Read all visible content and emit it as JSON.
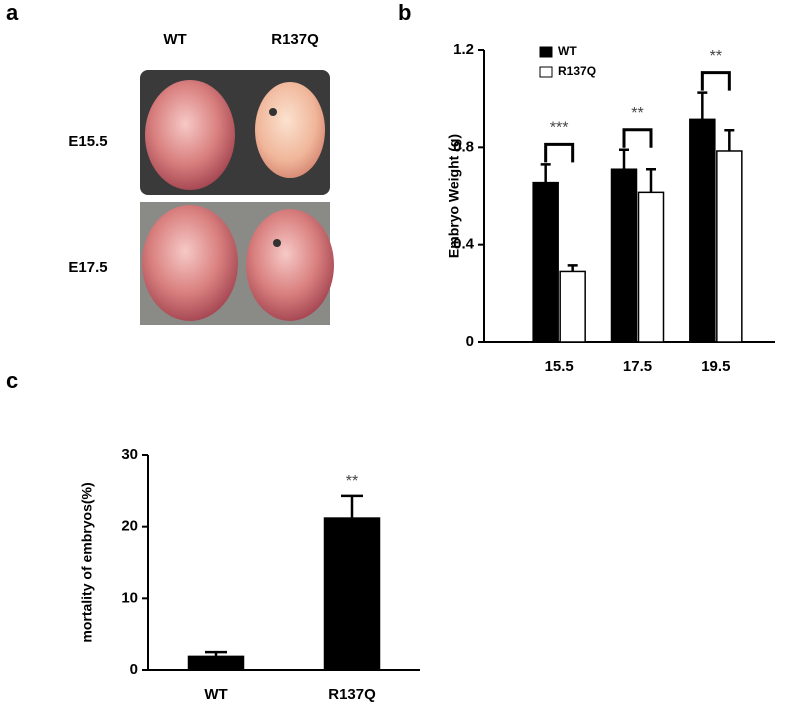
{
  "panel_labels": [
    "a",
    "b",
    "c"
  ],
  "panel_a": {
    "columns": [
      "WT",
      "R137Q"
    ],
    "rows": [
      "E15.5",
      "E17.5"
    ]
  },
  "chart_data": [
    {
      "type": "bar",
      "ylabel": "Embryo Weight (g)",
      "categories": [
        "15.5",
        "17.5",
        "19.5"
      ],
      "series": [
        {
          "name": "WT",
          "color": "#000000",
          "values": [
            0.655,
            0.71,
            0.915
          ],
          "errors": [
            0.075,
            0.08,
            0.11
          ]
        },
        {
          "name": "R137Q",
          "color": "#ffffff",
          "values": [
            0.29,
            0.615,
            0.785
          ],
          "errors": [
            0.025,
            0.095,
            0.085
          ]
        }
      ],
      "annotations": [
        "***",
        "**",
        "**"
      ],
      "ylim": [
        0,
        1.2
      ],
      "yticks": [
        0,
        0.4,
        0.8,
        1.2
      ],
      "legend": "top-left"
    },
    {
      "type": "bar",
      "ylabel": "mortality of embryos(%)",
      "categories": [
        "WT",
        "R137Q"
      ],
      "series": [
        {
          "color": "#000000",
          "values": [
            1.9,
            21.2
          ],
          "errors": [
            0.6,
            3.1
          ]
        }
      ],
      "annotations": [
        null,
        "**"
      ],
      "ylim": [
        0,
        30
      ],
      "yticks": [
        0,
        10,
        20,
        30
      ]
    }
  ]
}
